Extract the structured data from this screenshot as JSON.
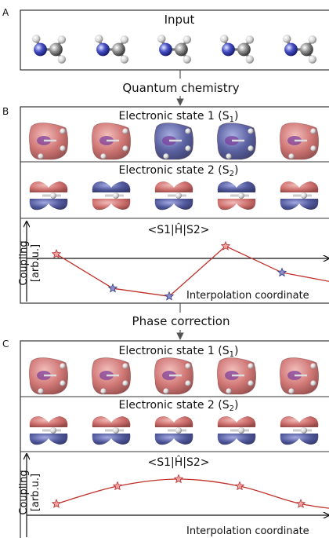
{
  "panel_a": {
    "letter": "A",
    "title": "Input"
  },
  "step1": {
    "label": "Quantum chemistry"
  },
  "panel_b": {
    "letter": "B",
    "state1_title": "Electronic state 1 (S",
    "state1_sub": "1",
    "state2_title": "Electronic state 2 (S",
    "state2_sub": "2",
    "state1_phases": [
      "red",
      "red",
      "blue",
      "blue",
      "red"
    ],
    "state2_phases": [
      "red-blue",
      "blue-red",
      "red-blue",
      "blue-red",
      "red-blue"
    ],
    "coupling_title": "<S1|Ĥ|S2>",
    "ylabel_line1": "Coupling",
    "ylabel_line2": "[arb.u.]",
    "xlabel": "Interpolation coordinate"
  },
  "step2": {
    "label": "Phase correction"
  },
  "panel_c": {
    "letter": "C",
    "state1_title": "Electronic state 1 (S",
    "state1_sub": "1",
    "state2_title": "Electronic state 2 (S",
    "state2_sub": "2",
    "state1_phases": [
      "red",
      "red",
      "red",
      "red",
      "red"
    ],
    "state2_phases": [
      "red-blue",
      "red-blue",
      "red-blue",
      "red-blue",
      "red-blue"
    ],
    "coupling_title": "<S1|Ĥ|S2>",
    "ylabel_line1": "Coupling",
    "ylabel_line2": "[arb.u.]",
    "xlabel": "Interpolation coordinate"
  },
  "colors": {
    "red_lobe": "#c8605e",
    "blue_lobe": "#3e4690",
    "curve": "#c0302a",
    "star_red": "#f2a0a0",
    "star_blue": "#8a8ec8"
  },
  "chart_data": [
    {
      "type": "line",
      "x": [
        0,
        1,
        2,
        3,
        4,
        5
      ],
      "values": [
        0.3,
        -1.0,
        -1.3,
        0.6,
        -0.4,
        -0.8
      ],
      "marker_colors": [
        "red",
        "blue",
        "blue",
        "red",
        "blue",
        "none"
      ],
      "title": "",
      "xlabel": "Interpolation coordinate",
      "ylabel": "Coupling [arb.u.]"
    },
    {
      "type": "line",
      "x": [
        0,
        1,
        2,
        3,
        4,
        5
      ],
      "values": [
        0.15,
        0.9,
        1.2,
        0.9,
        0.15,
        -0.2
      ],
      "marker_colors": [
        "red",
        "red",
        "red",
        "red",
        "red",
        "none"
      ],
      "title": "",
      "xlabel": "Interpolation coordinate",
      "ylabel": "Coupling [arb.u.]"
    }
  ]
}
